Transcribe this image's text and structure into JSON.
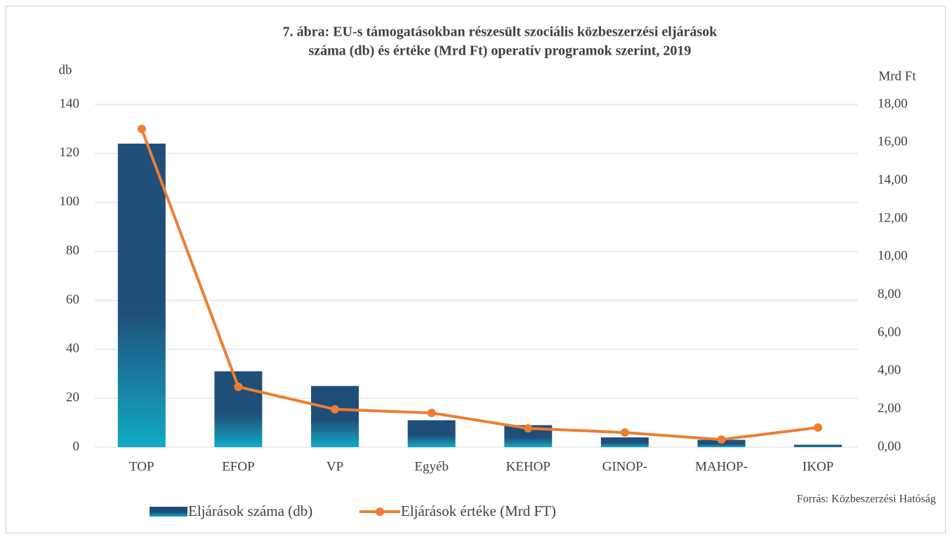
{
  "chart_data": {
    "type": "bar-line",
    "title": [
      "7. ábra: EU-s támogatásokban részesült szociális közbeszerzési eljárások",
      "száma (db) és értéke (Mrd Ft) operatív programok szerint, 2019"
    ],
    "y_label": "db",
    "y2_label": "Mrd Ft",
    "source": "Forrás: Közbeszerzési Hatóság",
    "categories": [
      "TOP",
      "EFOP",
      "VP",
      "Egyéb",
      "KEHOP",
      "GINOP-",
      "MAHOP-",
      "IKOP"
    ],
    "series": [
      {
        "name": "Eljárások száma (db)",
        "type": "bar",
        "color": "#1f4e79",
        "values": [
          124,
          31,
          25,
          11,
          9,
          4,
          3,
          1
        ]
      },
      {
        "name": "Eljárások értéke (Mrd FT)",
        "type": "line",
        "axis": "y2",
        "color": "#ed7d31",
        "values": [
          16.71,
          3.17,
          1.99,
          1.8,
          0.99,
          0.77,
          0.4,
          1.03
        ]
      }
    ],
    "ylim": [
      0,
      140
    ],
    "yticks": [
      0,
      20,
      40,
      60,
      80,
      100,
      120,
      140
    ],
    "y2lim": [
      0,
      18
    ],
    "y2ticks": [
      {
        "value": 0,
        "label": "0,00"
      },
      {
        "value": 2,
        "label": "2,00"
      },
      {
        "value": 4,
        "label": "4,00"
      },
      {
        "value": 6,
        "label": "6,00"
      },
      {
        "value": 8,
        "label": "8,00"
      },
      {
        "value": 10,
        "label": "10,00"
      },
      {
        "value": 12,
        "label": "12,00"
      },
      {
        "value": 14,
        "label": "14,00"
      },
      {
        "value": 16,
        "label": "16,00"
      },
      {
        "value": 18,
        "label": "18,00"
      }
    ],
    "grid": true,
    "legend": "bottom"
  }
}
